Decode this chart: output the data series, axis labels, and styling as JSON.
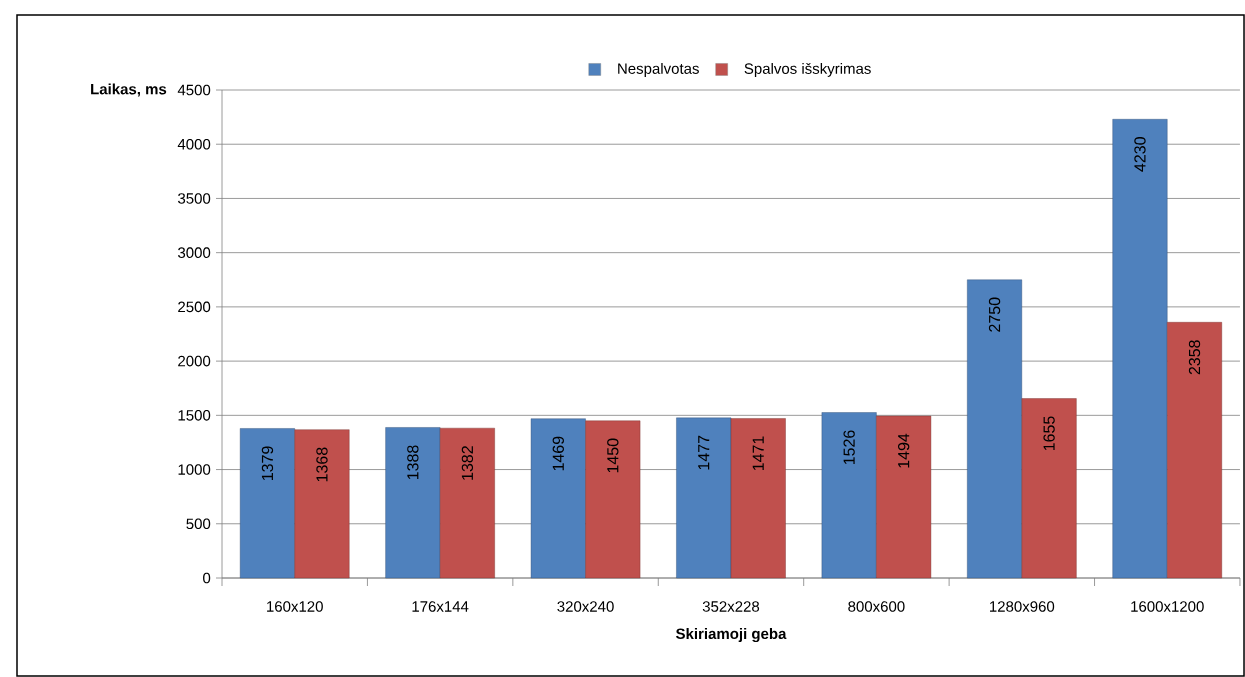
{
  "chart_data": {
    "type": "bar",
    "xlabel": "Skiriamoji geba",
    "ylabel": "Laikas, ms",
    "categories": [
      "160x120",
      "176x144",
      "320x240",
      "352x228",
      "800x600",
      "1280x960",
      "1600x1200"
    ],
    "series": [
      {
        "name": "Nespalvotas",
        "color": "#4f81bd",
        "values": [
          1379,
          1388,
          1469,
          1477,
          1526,
          2750,
          4230
        ]
      },
      {
        "name": "Spalvos išskyrimas",
        "color": "#c0504d",
        "values": [
          1368,
          1382,
          1450,
          1471,
          1494,
          1655,
          2358
        ]
      }
    ],
    "ylim": [
      0,
      4500
    ],
    "yticks": [
      0,
      500,
      1000,
      1500,
      2000,
      2500,
      3000,
      3500,
      4000,
      4500
    ],
    "grid": "y",
    "legend": "top",
    "data_labels": true
  }
}
